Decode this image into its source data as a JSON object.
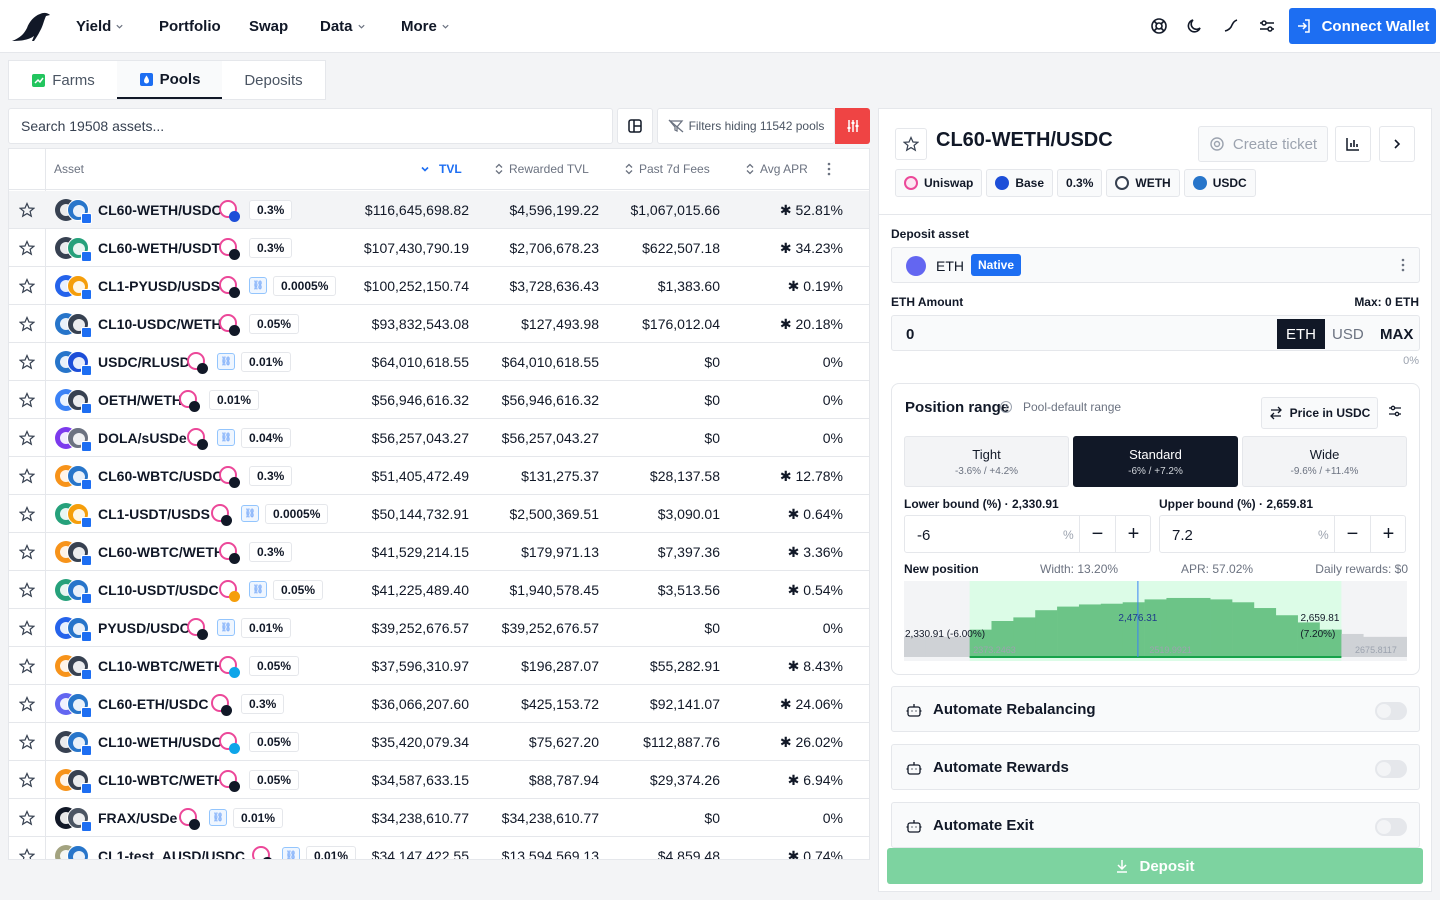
{
  "nav": {
    "items": [
      {
        "label": "Yield",
        "dropdown": true
      },
      {
        "label": "Portfolio",
        "dropdown": false
      },
      {
        "label": "Swap",
        "dropdown": false
      },
      {
        "label": "Data",
        "dropdown": true
      },
      {
        "label": "More",
        "dropdown": true
      }
    ],
    "icons": [
      "support-icon",
      "moon-icon",
      "chart-trend-icon",
      "settings-icon"
    ],
    "connect_label": "Connect Wallet"
  },
  "tabs": [
    {
      "label": "Farms",
      "icon": "farms-icon",
      "active": false
    },
    {
      "label": "Pools",
      "icon": "pools-icon",
      "active": true
    },
    {
      "label": "Deposits",
      "icon": "",
      "active": false
    }
  ],
  "toolbar": {
    "search_placeholder": "Search 19508 assets...",
    "filters_label": "Filters hiding 11542 pools"
  },
  "table": {
    "headers": {
      "asset": "Asset",
      "tvl": "TVL",
      "rewarded_tvl": "Rewarded TVL",
      "fees": "Past 7d Fees",
      "apr": "Avg APR"
    },
    "rows": [
      {
        "name": "CL60-WETH/USDC",
        "fee": "0.3%",
        "link": false,
        "tvl": "$116,645,698.82",
        "rtvl": "$4,596,199.22",
        "fees": "$1,067,015.66",
        "apr": "✱ 52.81%",
        "t1": "#374151",
        "t2": "#2775ca",
        "c2": "#1d4ed8"
      },
      {
        "name": "CL60-WETH/USDT",
        "fee": "0.3%",
        "link": false,
        "tvl": "$107,430,790.19",
        "rtvl": "$2,706,678.23",
        "fees": "$622,507.18",
        "apr": "✱ 34.23%",
        "t1": "#374151",
        "t2": "#26a17b",
        "c2": "#111827"
      },
      {
        "name": "CL1-PYUSD/USDS",
        "fee": "0.0005%",
        "link": true,
        "tvl": "$100,252,150.74",
        "rtvl": "$3,728,636.43",
        "fees": "$1,383.60",
        "apr": "✱ 0.19%",
        "t1": "#2563eb",
        "t2": "#f59e0b",
        "c2": "#111827"
      },
      {
        "name": "CL10-USDC/WETH",
        "fee": "0.05%",
        "link": false,
        "tvl": "$93,832,543.08",
        "rtvl": "$127,493.98",
        "fees": "$176,012.04",
        "apr": "✱ 20.18%",
        "t1": "#2775ca",
        "t2": "#374151",
        "c2": "#111827"
      },
      {
        "name": "USDC/RLUSD",
        "fee": "0.01%",
        "link": true,
        "tvl": "$64,010,618.55",
        "rtvl": "$64,010,618.55",
        "fees": "$0",
        "apr": "0%",
        "t1": "#2775ca",
        "t2": "#1d4ed8",
        "c2": "#111827"
      },
      {
        "name": "OETH/WETH",
        "fee": "0.01%",
        "link": false,
        "tvl": "$56,946,616.32",
        "rtvl": "$56,946,616.32",
        "fees": "$0",
        "apr": "0%",
        "t1": "#3b82f6",
        "t2": "#374151",
        "c2": "#111827"
      },
      {
        "name": "DOLA/sUSDe",
        "fee": "0.04%",
        "link": true,
        "tvl": "$56,257,043.27",
        "rtvl": "$56,257,043.27",
        "fees": "$0",
        "apr": "0%",
        "t1": "#7c3aed",
        "t2": "#6b7280",
        "c2": "#111827"
      },
      {
        "name": "CL60-WBTC/USDC",
        "fee": "0.3%",
        "link": false,
        "tvl": "$51,405,472.49",
        "rtvl": "$131,275.37",
        "fees": "$28,137.58",
        "apr": "✱ 12.78%",
        "t1": "#f7931a",
        "t2": "#2775ca",
        "c2": "#111827"
      },
      {
        "name": "CL1-USDT/USDS",
        "fee": "0.0005%",
        "link": true,
        "tvl": "$50,144,732.91",
        "rtvl": "$2,500,369.51",
        "fees": "$3,090.01",
        "apr": "✱ 0.64%",
        "t1": "#26a17b",
        "t2": "#f59e0b",
        "c2": "#111827"
      },
      {
        "name": "CL60-WBTC/WETH",
        "fee": "0.3%",
        "link": false,
        "tvl": "$41,529,214.15",
        "rtvl": "$179,971.13",
        "fees": "$7,397.36",
        "apr": "✱ 3.36%",
        "t1": "#f7931a",
        "t2": "#374151",
        "c2": "#111827"
      },
      {
        "name": "CL10-USDT/USDC",
        "fee": "0.05%",
        "link": true,
        "tvl": "$41,225,489.40",
        "rtvl": "$1,940,578.45",
        "fees": "$3,513.56",
        "apr": "✱ 0.54%",
        "t1": "#26a17b",
        "t2": "#2775ca",
        "c2": "#f59e0b"
      },
      {
        "name": "PYUSD/USDC",
        "fee": "0.01%",
        "link": true,
        "tvl": "$39,252,676.57",
        "rtvl": "$39,252,676.57",
        "fees": "$0",
        "apr": "0%",
        "t1": "#2563eb",
        "t2": "#2775ca",
        "c2": "#111827"
      },
      {
        "name": "CL10-WBTC/WETH",
        "fee": "0.05%",
        "link": false,
        "tvl": "$37,596,310.97",
        "rtvl": "$196,287.07",
        "fees": "$55,282.91",
        "apr": "✱ 8.43%",
        "t1": "#f7931a",
        "t2": "#374151",
        "c2": "#0ea5e9"
      },
      {
        "name": "CL60-ETH/USDC",
        "fee": "0.3%",
        "link": false,
        "tvl": "$36,066,207.60",
        "rtvl": "$425,153.72",
        "fees": "$92,141.07",
        "apr": "✱ 24.06%",
        "t1": "#6366f1",
        "t2": "#2775ca",
        "c2": "#111827"
      },
      {
        "name": "CL10-WETH/USDC",
        "fee": "0.05%",
        "link": false,
        "tvl": "$35,420,079.34",
        "rtvl": "$75,627.20",
        "fees": "$112,887.76",
        "apr": "✱ 26.02%",
        "t1": "#374151",
        "t2": "#2775ca",
        "c2": "#0ea5e9"
      },
      {
        "name": "CL10-WBTC/WETH",
        "fee": "0.05%",
        "link": false,
        "tvl": "$34,587,633.15",
        "rtvl": "$88,787.94",
        "fees": "$29,374.26",
        "apr": "✱ 6.94%",
        "t1": "#f7931a",
        "t2": "#374151",
        "c2": "#111827"
      },
      {
        "name": "FRAX/USDe",
        "fee": "0.01%",
        "link": true,
        "tvl": "$34,238,610.77",
        "rtvl": "$34,238,610.77",
        "fees": "$0",
        "apr": "0%",
        "t1": "#111827",
        "t2": "#4b5563",
        "c2": "#111827"
      },
      {
        "name": "CL1-test_AUSD/USDC",
        "fee": "0.01%",
        "link": true,
        "tvl": "$34,147,422.55",
        "rtvl": "$13,594,569.13",
        "fees": "$4,859.48",
        "apr": "✱ 0.74%",
        "t1": "#a3a380",
        "t2": "#2775ca",
        "c2": "#111827"
      }
    ]
  },
  "panel": {
    "title": "CL60-WETH/USDC",
    "create_ticket": "Create ticket",
    "chips": [
      {
        "label": "Uniswap",
        "color": "#ec4899"
      },
      {
        "label": "Base",
        "color": "#1d4ed8"
      },
      {
        "label": "0.3%",
        "color": ""
      },
      {
        "label": "WETH",
        "color": "#374151"
      },
      {
        "label": "USDC",
        "color": "#2775ca"
      }
    ],
    "deposit_asset_label": "Deposit asset",
    "asset": "ETH",
    "native_badge": "Native",
    "amount_label": "ETH Amount",
    "max_label": "Max: 0 ETH",
    "amount_value": "0",
    "units": [
      "ETH",
      "USD",
      "MAX"
    ],
    "amount_pct": "0%",
    "range": {
      "title": "Position range",
      "subtitle": "Pool-default range",
      "price_in": "Price in USDC",
      "presets": [
        {
          "name": "Tight",
          "value": "-3.6% / +4.2%",
          "active": false
        },
        {
          "name": "Standard",
          "value": "-6% / +7.2%",
          "active": true
        },
        {
          "name": "Wide",
          "value": "-9.6% / +11.4%",
          "active": false
        }
      ],
      "lower_label": "Lower bound (%) · 2,330.91",
      "upper_label": "Upper bound (%) · 2,659.81",
      "lower_value": "-6",
      "upper_value": "7.2",
      "pct_symbol": "%",
      "new_position": "New position",
      "width": "Width: 13.20%",
      "apr": "APR: 57.02%",
      "daily_rewards": "Daily rewards: $0"
    },
    "automations": [
      "Automate Rebalancing",
      "Automate Rewards",
      "Automate Exit"
    ],
    "deposit_label": "Deposit"
  },
  "chart_data": {
    "type": "bar",
    "title": "",
    "liquidity": [
      0.28,
      0.28,
      0.28,
      0.38,
      0.5,
      0.55,
      0.65,
      0.7,
      0.73,
      0.74,
      0.76,
      0.8,
      0.82,
      0.82,
      0.8,
      0.76,
      0.68,
      0.58,
      0.48,
      0.38,
      0.32,
      0.28,
      0.28
    ],
    "range_start_index": 3,
    "range_end_index": 20,
    "x_ticks": [
      "2373.2463",
      "2519.9921",
      "2675.8117"
    ],
    "labels": {
      "lower": "2,330.91 (-6.00%)",
      "current": "2,476.31",
      "upper_price": "2,659.81",
      "upper_pct": "(7.20%)"
    }
  }
}
